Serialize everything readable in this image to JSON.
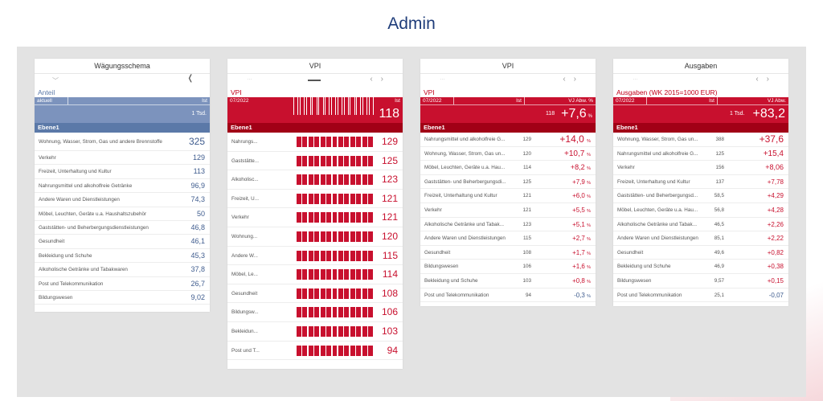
{
  "page": {
    "title": "Admin"
  },
  "colors": {
    "title": "#1f3d7a",
    "red": "#c8102e",
    "blue": "#7c93bd"
  },
  "card1": {
    "heading": "Wägungsschema",
    "subtitle": "Anteil",
    "col1": "aktuell",
    "col2": "Ist",
    "total": "1 Tsd.",
    "level": "Ebene1",
    "rows": [
      {
        "label": "Wohnung, Wasser, Strom, Gas und andere Brennstoffe",
        "value": "325"
      },
      {
        "label": "Verkehr",
        "value": "129"
      },
      {
        "label": "Freizeit, Unterhaltung und Kultur",
        "value": "113"
      },
      {
        "label": "Nahrungsmittel und alkoholfreie Getränke",
        "value": "96,9"
      },
      {
        "label": "Andere Waren und Dienstleistungen",
        "value": "74,3"
      },
      {
        "label": "Möbel, Leuchten, Geräte u.a. Haushaltszubehör",
        "value": "50"
      },
      {
        "label": "Gaststätten- und Beherbergungsdienstleistungen",
        "value": "46,8"
      },
      {
        "label": "Gesundheit",
        "value": "46,1"
      },
      {
        "label": "Bekleidung und Schuhe",
        "value": "45,3"
      },
      {
        "label": "Alkoholische Getränke und Tabakwaren",
        "value": "37,8"
      },
      {
        "label": "Post und Telekommunikation",
        "value": "26,7"
      },
      {
        "label": "Bildungswesen",
        "value": "9,02"
      }
    ]
  },
  "card2": {
    "heading": "VPI",
    "subtitle": "VPI",
    "period": "07/2022",
    "col": "Ist",
    "total": "118",
    "level": "Ebene1",
    "rows": [
      {
        "label": "Nahrungs...",
        "value": "129"
      },
      {
        "label": "Gaststätte...",
        "value": "125"
      },
      {
        "label": "Alkoholisc...",
        "value": "123"
      },
      {
        "label": "Freizeit, U...",
        "value": "121"
      },
      {
        "label": "Verkehr",
        "value": "121"
      },
      {
        "label": "Wohnung...",
        "value": "120"
      },
      {
        "label": "Andere W...",
        "value": "115"
      },
      {
        "label": "Möbel, Le...",
        "value": "114"
      },
      {
        "label": "Gesundheit",
        "value": "108"
      },
      {
        "label": "Bildungsw...",
        "value": "106"
      },
      {
        "label": "Bekleidun...",
        "value": "103"
      },
      {
        "label": "Post und T...",
        "value": "94"
      }
    ]
  },
  "card3": {
    "heading": "VPI",
    "subtitle": "VPI",
    "period": "07/2022",
    "col1": "Ist",
    "col2": "VJ Abw. %",
    "total_ist": "118",
    "total_abw": "+7,6",
    "pct": "%",
    "level": "Ebene1",
    "rows": [
      {
        "label": "Nahrungsmittel und alkoholfreie G...",
        "ist": "129",
        "abw": "+14,0"
      },
      {
        "label": "Wohnung, Wasser, Strom, Gas un...",
        "ist": "120",
        "abw": "+10,7"
      },
      {
        "label": "Möbel, Leuchten, Geräte u.a. Hau...",
        "ist": "114",
        "abw": "+8,2"
      },
      {
        "label": "Gaststätten- und Beherbergungsdi...",
        "ist": "125",
        "abw": "+7,9"
      },
      {
        "label": "Freizeit, Unterhaltung und Kultur",
        "ist": "121",
        "abw": "+6,0"
      },
      {
        "label": "Verkehr",
        "ist": "121",
        "abw": "+5,5"
      },
      {
        "label": "Alkoholische Getränke und Tabak...",
        "ist": "123",
        "abw": "+5,1"
      },
      {
        "label": "Andere Waren und Dienstleistungen",
        "ist": "115",
        "abw": "+2,7"
      },
      {
        "label": "Gesundheit",
        "ist": "108",
        "abw": "+1,7"
      },
      {
        "label": "Bildungswesen",
        "ist": "106",
        "abw": "+1,6"
      },
      {
        "label": "Bekleidung und Schuhe",
        "ist": "103",
        "abw": "+0,8"
      },
      {
        "label": "Post und Telekommunikation",
        "ist": "94",
        "abw": "-0,3"
      }
    ]
  },
  "card4": {
    "heading": "Ausgaben",
    "subtitle": "Ausgaben (WK 2015=1000 EUR)",
    "period": "07/2022",
    "col1": "Ist",
    "col2": "VJ Abw.",
    "total_ist": "1 Tsd.",
    "total_abw": "+83,2",
    "level": "Ebene1",
    "rows": [
      {
        "label": "Wohnung, Wasser, Strom, Gas un...",
        "ist": "388",
        "abw": "+37,6"
      },
      {
        "label": "Nahrungsmittel und alkoholfreie G...",
        "ist": "125",
        "abw": "+15,4"
      },
      {
        "label": "Verkehr",
        "ist": "156",
        "abw": "+8,06"
      },
      {
        "label": "Freizeit, Unterhaltung und Kultur",
        "ist": "137",
        "abw": "+7,78"
      },
      {
        "label": "Gaststätten- und Beherbergungsd...",
        "ist": "58,5",
        "abw": "+4,29"
      },
      {
        "label": "Möbel, Leuchten, Geräte u.a. Hau...",
        "ist": "56,8",
        "abw": "+4,28"
      },
      {
        "label": "Alkoholische Getränke und Tabak...",
        "ist": "46,5",
        "abw": "+2,26"
      },
      {
        "label": "Andere Waren und Dienstleistungen",
        "ist": "85,1",
        "abw": "+2,22"
      },
      {
        "label": "Gesundheit",
        "ist": "49,6",
        "abw": "+0,82"
      },
      {
        "label": "Bekleidung und Schuhe",
        "ist": "46,9",
        "abw": "+0,38"
      },
      {
        "label": "Bildungswesen",
        "ist": "9,57",
        "abw": "+0,15"
      },
      {
        "label": "Post und Telekommunikation",
        "ist": "25,1",
        "abw": "-0,07"
      }
    ]
  }
}
